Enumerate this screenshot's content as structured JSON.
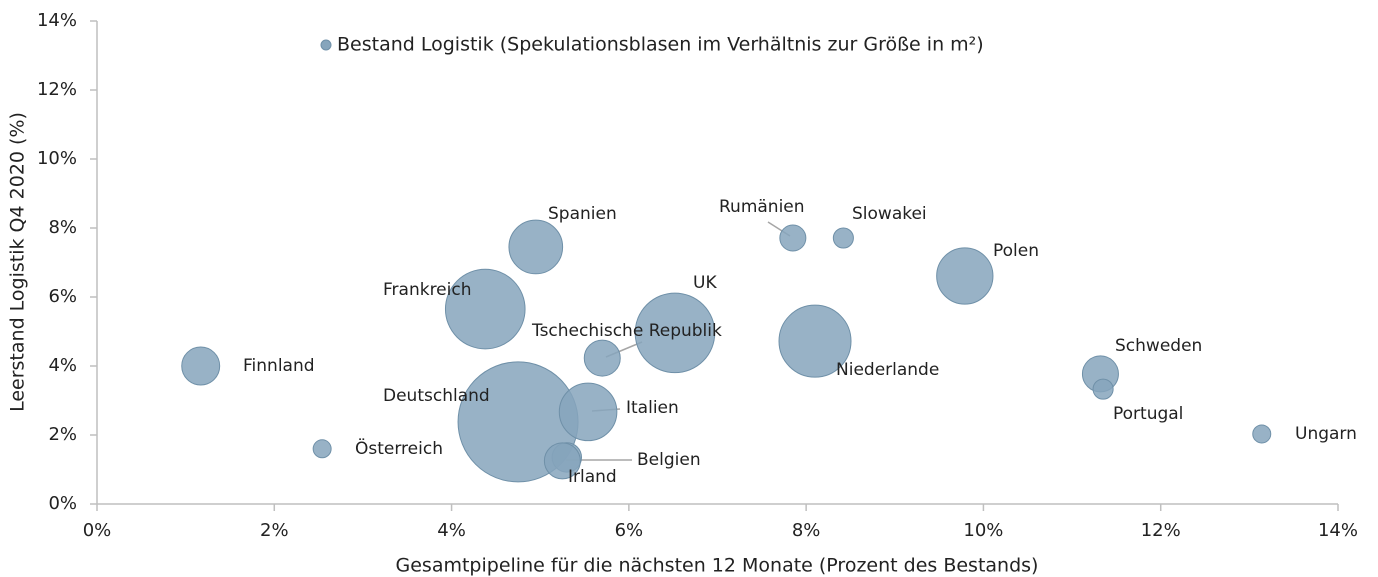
{
  "chart_data": {
    "type": "bubble",
    "xlabel": "Gesamtpipeline für die nächsten 12 Monate (Prozent des Bestands)",
    "ylabel": "Leerstand Logistik Q4 2020 (%)",
    "categories": [
      "Finnland",
      "Österreich",
      "Frankreich",
      "Spanien",
      "Deutschland",
      "Italien",
      "Belgien",
      "Irland",
      "Tschechische Republik",
      "UK",
      "Rumänien",
      "Slowakei",
      "Niederlande",
      "Polen",
      "Schweden",
      "Portugal",
      "Ungarn"
    ],
    "series": [
      {
        "name": "Bestand Logistik (Spekulationsblasen im Verhältnis zur Größe in m²)",
        "color": "#86a5bc",
        "x": [
          1.17,
          2.54,
          4.38,
          4.95,
          4.75,
          5.54,
          5.3,
          5.25,
          5.7,
          6.52,
          7.85,
          8.42,
          8.1,
          9.79,
          11.32,
          11.35,
          13.14
        ],
        "values": [
          4.0,
          1.6,
          5.65,
          7.45,
          2.38,
          2.67,
          1.35,
          1.25,
          4.23,
          4.96,
          7.71,
          7.71,
          4.72,
          6.61,
          3.77,
          3.33,
          2.03
        ],
        "sizes": [
          10,
          2.25,
          44,
          20,
          100,
          23,
          6,
          9,
          9,
          44,
          4.7,
          2.8,
          36,
          22,
          9,
          2.8,
          2.25
        ]
      }
    ],
    "xlim": [
      0,
      14
    ],
    "xticks": [
      {
        "value": 0,
        "label": "0%"
      },
      {
        "value": 2,
        "label": "2%"
      },
      {
        "value": 4,
        "label": "4%"
      },
      {
        "value": 6,
        "label": "6%"
      },
      {
        "value": 8,
        "label": "8%"
      },
      {
        "value": 10,
        "label": "10%"
      },
      {
        "value": 12,
        "label": "12%"
      },
      {
        "value": 14,
        "label": "14%"
      }
    ],
    "ylim": [
      0,
      14
    ],
    "yticks": [
      {
        "value": 0,
        "label": "0%"
      },
      {
        "value": 2,
        "label": "2%"
      },
      {
        "value": 4,
        "label": "4%"
      },
      {
        "value": 6,
        "label": "6%"
      },
      {
        "value": 8,
        "label": "8%"
      },
      {
        "value": 10,
        "label": "10%"
      },
      {
        "value": 12,
        "label": "12%"
      },
      {
        "value": 14,
        "label": "14%"
      }
    ],
    "grid": false
  }
}
